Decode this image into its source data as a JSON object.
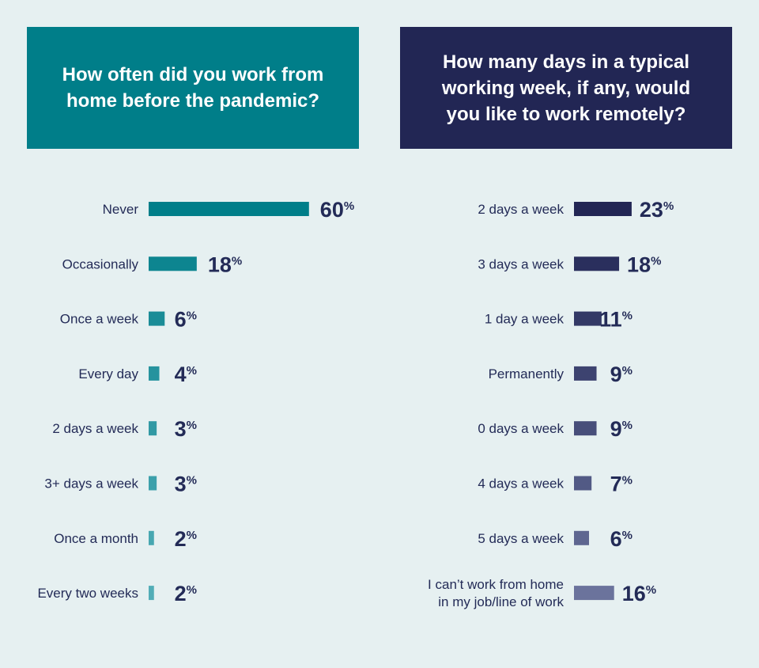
{
  "colors": {
    "background": "#e6f0f1",
    "left_header": "#007e89",
    "right_header": "#222654",
    "text": "#232b57"
  },
  "chart_data": [
    {
      "type": "bar",
      "orientation": "horizontal",
      "title": "How often did you work from home before the pandemic?",
      "categories": [
        "Never",
        "Occasionally",
        "Once a week",
        "Every day",
        "2 days a week",
        "3+ days a week",
        "Once a month",
        "Every two weeks"
      ],
      "values": [
        60,
        18,
        6,
        4,
        3,
        3,
        2,
        2
      ],
      "value_suffix": "%",
      "bar_colors": [
        "#007e89",
        "#0d8590",
        "#1a8c97",
        "#26939e",
        "#3199a4",
        "#3ca0ab",
        "#47a7b1",
        "#52adb7"
      ]
    },
    {
      "type": "bar",
      "orientation": "horizontal",
      "title": "How many days in a typical working week, if any, would you like to work remotely?",
      "categories": [
        "2 days a week",
        "3 days a week",
        "1 day a week",
        "Permanently",
        "0 days a week",
        "4 days a week",
        "5 days a week",
        "I can’t work from home in my job/line of work"
      ],
      "category_lines": [
        [
          "2 days a week"
        ],
        [
          "3 days a week"
        ],
        [
          "1 day a week"
        ],
        [
          "Permanently"
        ],
        [
          "0 days a week"
        ],
        [
          "4 days a week"
        ],
        [
          "5 days a week"
        ],
        [
          "I can’t work from home",
          "in my job/line of work"
        ]
      ],
      "values": [
        23,
        18,
        11,
        9,
        9,
        7,
        6,
        16
      ],
      "value_suffix": "%",
      "bar_colors": [
        "#222654",
        "#2a2f5d",
        "#333966",
        "#3d4370",
        "#474e7a",
        "#525a85",
        "#5e6690",
        "#6b739c"
      ]
    }
  ]
}
